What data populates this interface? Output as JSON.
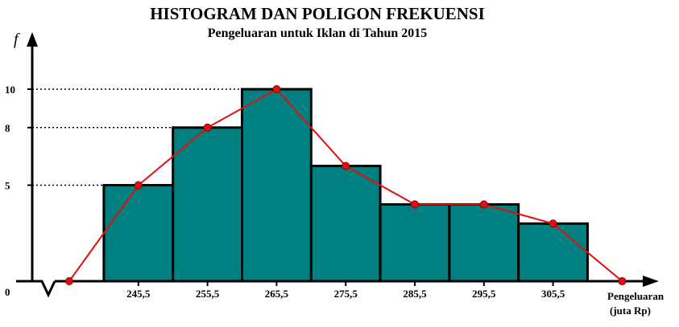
{
  "chart_data": {
    "type": "bar",
    "title": "HISTOGRAM DAN POLIGON FREKUENSI",
    "subtitle": "Pengeluaran untuk Iklan di Tahun  2015",
    "ylabel": "f",
    "xlabel_line1": "Pengeluaran",
    "xlabel_line2": "(juta Rp)",
    "categories": [
      "245,5",
      "255,5",
      "265,5",
      "275,5",
      "285,5",
      "295,5",
      "305,5"
    ],
    "midpoints": [
      245.5,
      255.5,
      265.5,
      275.5,
      285.5,
      295.5,
      305.5
    ],
    "values": [
      5,
      8,
      10,
      6,
      4,
      4,
      3
    ],
    "polygon": {
      "x": [
        235.5,
        245.5,
        255.5,
        265.5,
        275.5,
        285.5,
        295.5,
        305.5,
        315.5
      ],
      "y": [
        0,
        5,
        8,
        10,
        6,
        4,
        4,
        3,
        0
      ]
    },
    "yticks": [
      "0",
      "5",
      "8",
      "10"
    ],
    "ytick_values": [
      0,
      5,
      8,
      10
    ],
    "colors": {
      "bar": "#008080",
      "polygon": "#e01010"
    },
    "grid": false,
    "legend": "none"
  }
}
